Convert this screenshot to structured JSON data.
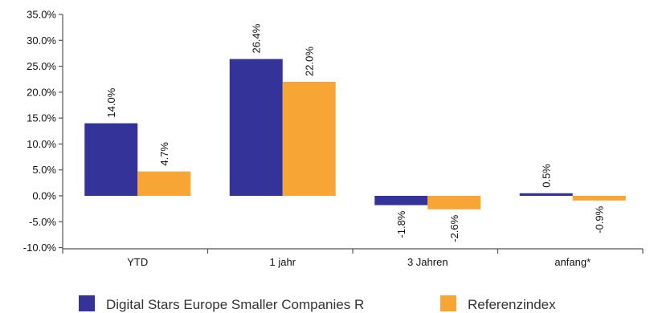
{
  "chart_data": {
    "type": "bar",
    "categories": [
      "YTD",
      "1 jahr",
      "3 Jahren",
      "anfang*"
    ],
    "series": [
      {
        "name": "Digital Stars Europe Smaller Companies R",
        "color": "#333399",
        "values": [
          14.0,
          26.4,
          -1.8,
          0.5
        ],
        "labels": [
          "14.0%",
          "26.4%",
          "-1.8%",
          "0.5%"
        ]
      },
      {
        "name": "Referenzindex",
        "color": "#f7a535",
        "values": [
          4.7,
          22.0,
          -2.6,
          -0.9
        ],
        "labels": [
          "4.7%",
          "22.0%",
          "-2.6%",
          "-0.9%"
        ]
      }
    ],
    "ylim": [
      -10,
      35
    ],
    "yticks": [
      35,
      30,
      25,
      20,
      15,
      10,
      5,
      0,
      -5,
      -10
    ],
    "ytick_labels": [
      "35.0%",
      "30.0%",
      "25.0%",
      "20.0%",
      "15.0%",
      "10.0%",
      "5.0%",
      "0.0%",
      "-5.0%",
      "-10.0%"
    ],
    "grid": false,
    "legend_position": "bottom",
    "data_labels_rotated": true
  }
}
